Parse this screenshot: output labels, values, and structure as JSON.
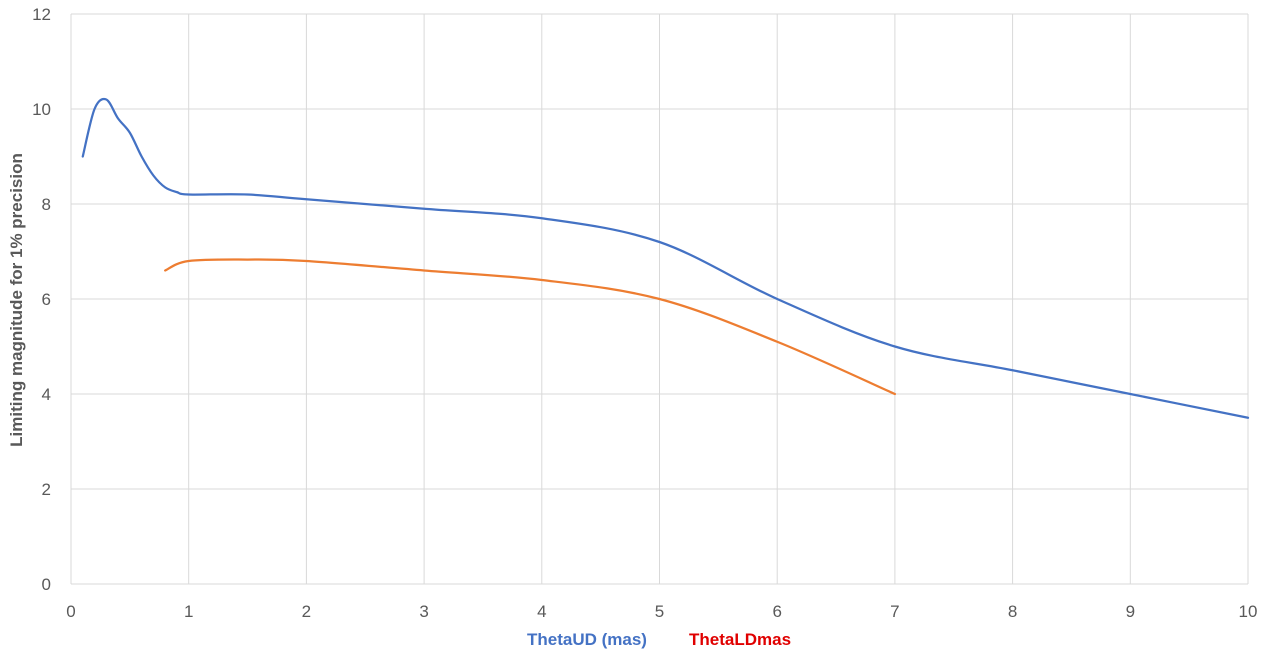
{
  "chart_data": {
    "type": "line",
    "title": "",
    "ylabel": "Limiting magnitude for 1% precision",
    "xlabels": [
      {
        "text": "ThetaUD (mas)",
        "color": "#4472c4"
      },
      {
        "text": "ThetaLDmas",
        "color": "#e00000"
      }
    ],
    "xlim": [
      0,
      10
    ],
    "ylim": [
      0,
      12
    ],
    "xticks": [
      0,
      1,
      2,
      3,
      4,
      5,
      6,
      7,
      8,
      9,
      10
    ],
    "yticks": [
      0,
      2,
      4,
      6,
      8,
      10,
      12
    ],
    "grid": true,
    "series": [
      {
        "color": "#4472c4",
        "x": [
          0.1,
          0.2,
          0.3,
          0.4,
          0.5,
          0.6,
          0.7,
          0.8,
          0.9,
          1.0,
          1.5,
          2.0,
          3.0,
          4.0,
          5.0,
          6.0,
          7.0,
          8.0,
          9.0,
          10.0
        ],
        "y": [
          9.0,
          10.0,
          10.2,
          9.8,
          9.5,
          9.0,
          8.6,
          8.35,
          8.25,
          8.2,
          8.2,
          8.1,
          7.9,
          7.7,
          7.2,
          6.0,
          5.0,
          4.5,
          4.0,
          3.5
        ]
      },
      {
        "color": "#ed7d31",
        "x": [
          0.8,
          1.0,
          1.5,
          2.0,
          3.0,
          4.0,
          5.0,
          6.0,
          7.0
        ],
        "y": [
          6.6,
          6.8,
          6.83,
          6.8,
          6.6,
          6.4,
          6.0,
          5.1,
          4.0
        ]
      }
    ]
  }
}
